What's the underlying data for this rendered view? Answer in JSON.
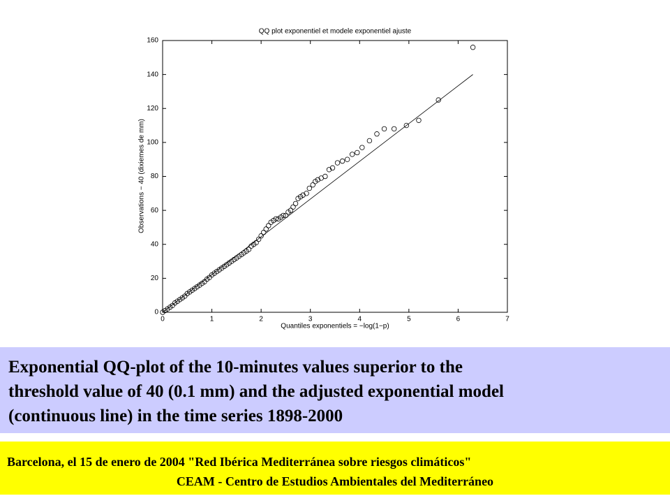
{
  "chart_data": {
    "type": "scatter",
    "title": "QQ plot exponentiel et modele exponentiel ajuste",
    "xlabel": "Quantiles exponentiels = −log(1−p)",
    "ylabel": "Observations − 40 (dixiemes de mm)",
    "xlim": [
      0,
      7
    ],
    "ylim": [
      0,
      160
    ],
    "xticks": [
      0,
      1,
      2,
      3,
      4,
      5,
      6,
      7
    ],
    "yticks": [
      0,
      20,
      40,
      60,
      80,
      100,
      120,
      140,
      160
    ],
    "grid": false,
    "series": [
      {
        "draw": "markers",
        "color": "#000000",
        "x": [
          0,
          0.05,
          0.1,
          0.15,
          0.2,
          0.25,
          0.3,
          0.35,
          0.4,
          0.45,
          0.5,
          0.55,
          0.6,
          0.65,
          0.7,
          0.75,
          0.8,
          0.85,
          0.9,
          0.95,
          1.0,
          1.05,
          1.1,
          1.15,
          1.2,
          1.25,
          1.3,
          1.35,
          1.4,
          1.45,
          1.5,
          1.55,
          1.6,
          1.65,
          1.7,
          1.75,
          1.8,
          1.85,
          1.9,
          1.95,
          2.0,
          2.05,
          2.1,
          2.15,
          2.2,
          2.25,
          2.3,
          2.35,
          2.4,
          2.45,
          2.5,
          2.55,
          2.6,
          2.65,
          2.7,
          2.75,
          2.8,
          2.85,
          2.92,
          2.98,
          3.05,
          3.1,
          3.15,
          3.22,
          3.3,
          3.38,
          3.45,
          3.55,
          3.65,
          3.75,
          3.85,
          3.95,
          4.05,
          4.2,
          4.35,
          4.5,
          4.7,
          4.95,
          5.2,
          5.6,
          6.3
        ],
        "y": [
          0,
          1,
          2,
          3,
          4,
          5.5,
          6.5,
          7.5,
          8.5,
          9.5,
          11,
          12,
          13,
          14,
          15,
          16,
          17,
          18,
          19.5,
          20.5,
          22,
          23,
          24,
          25,
          26,
          27,
          28,
          29,
          30,
          31,
          32,
          33,
          34,
          35,
          36,
          37,
          39,
          40,
          41,
          43,
          45,
          47,
          49,
          51,
          53,
          54,
          55,
          55,
          56,
          57,
          57,
          59,
          60,
          62,
          64,
          67,
          68,
          69,
          70,
          73,
          75,
          77,
          78,
          79,
          80,
          84,
          85,
          88,
          89,
          90,
          93,
          94,
          97,
          101,
          105,
          108,
          108,
          110,
          113,
          125,
          156
        ]
      },
      {
        "draw": "line",
        "color": "#000000",
        "x": [
          0,
          6.3
        ],
        "y": [
          0,
          140
        ]
      }
    ]
  },
  "caption": {
    "lines": [
      "Exponential QQ-plot of the 10-minutes values superior to the",
      "threshold value of 40 (0.1 mm) and the adjusted exponential model",
      "(continuous line) in the time series 1898-2000"
    ]
  },
  "footer": {
    "line1": "Barcelona, el 15 de enero de 2004  \"Red Ibérica Mediterránea sobre riesgos climáticos\"",
    "line2": "CEAM - Centro de Estudios Ambientales del Mediterráneo"
  }
}
